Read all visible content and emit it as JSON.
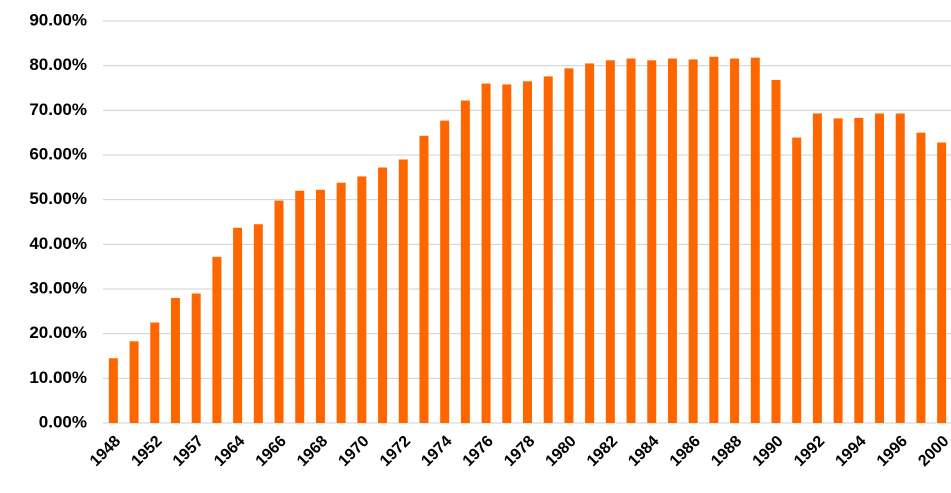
{
  "chart_data": {
    "type": "bar",
    "color": "#ff6600",
    "grid": true,
    "categories": [
      "1948",
      null,
      "1952",
      null,
      "1957",
      null,
      "1964",
      null,
      "1966",
      null,
      "1968",
      null,
      "1970",
      null,
      "1972",
      null,
      "1974",
      null,
      "1976",
      null,
      "1978",
      null,
      "1980",
      null,
      "1982",
      null,
      "1984",
      null,
      "1986",
      null,
      "1988",
      null,
      "1990",
      null,
      "1992",
      null,
      "1994",
      null,
      "1996",
      null,
      "2000"
    ],
    "values": [
      14.5,
      18.3,
      22.5,
      28,
      29,
      37.2,
      43.7,
      44.5,
      49.8,
      52,
      52.2,
      53.8,
      55.2,
      57.2,
      59,
      64.3,
      67.7,
      72.2,
      76,
      75.8,
      76.5,
      77.6,
      79.4,
      80.5,
      81.2,
      81.6,
      81.2,
      81.6,
      81.4,
      82,
      81.6,
      81.8,
      76.8,
      63.9,
      69.3,
      68.2,
      68.3,
      69.3,
      69.3,
      65,
      62.8
    ],
    "ylim": [
      0,
      90
    ],
    "yticks": [
      {
        "value": 0,
        "label": "0.00%"
      },
      {
        "value": 10,
        "label": "10.00%"
      },
      {
        "value": 20,
        "label": "20.00%"
      },
      {
        "value": 30,
        "label": "30.00%"
      },
      {
        "value": 40,
        "label": "40.00%"
      },
      {
        "value": 50,
        "label": "50.00%"
      },
      {
        "value": 60,
        "label": "60.00%"
      },
      {
        "value": 70,
        "label": "70.00%"
      },
      {
        "value": 80,
        "label": "80.00%"
      },
      {
        "value": 90,
        "label": "90.00%"
      }
    ]
  }
}
